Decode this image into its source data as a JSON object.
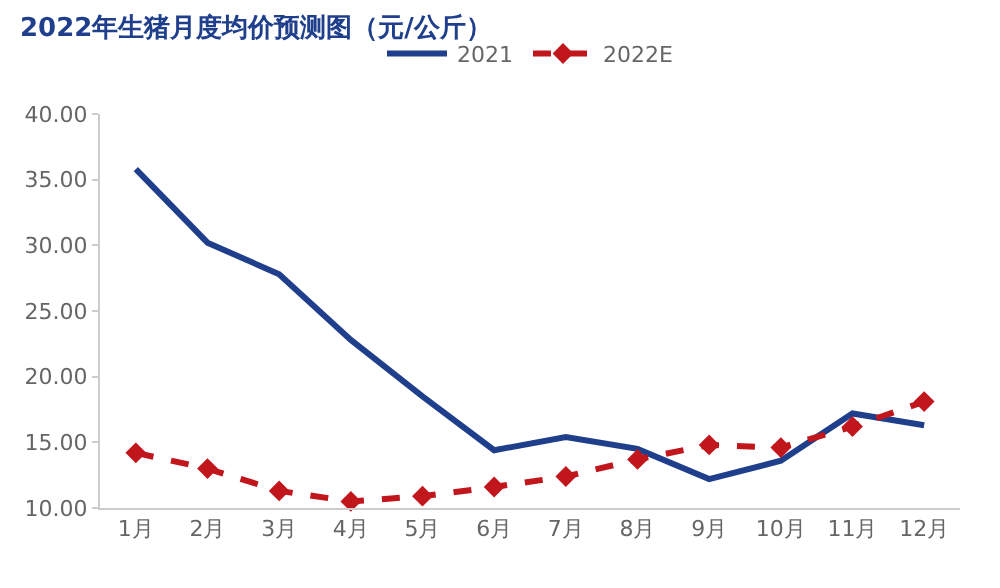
{
  "chart_data": {
    "type": "line",
    "title": "2022年生猪月度均价预测图（元/公斤）",
    "categories": [
      "1月",
      "2月",
      "3月",
      "4月",
      "5月",
      "6月",
      "7月",
      "8月",
      "9月",
      "10月",
      "11月",
      "12月"
    ],
    "series": [
      {
        "name": "2021",
        "color": "#1f3f8c",
        "values": [
          35.8,
          30.2,
          27.8,
          22.8,
          18.5,
          14.4,
          15.4,
          14.5,
          12.2,
          13.6,
          17.2,
          16.3
        ]
      },
      {
        "name": "2022E",
        "color": "#c0161c",
        "values": [
          14.2,
          13.0,
          11.3,
          10.5,
          10.9,
          11.6,
          12.4,
          13.7,
          14.8,
          14.6,
          16.2,
          18.1
        ],
        "marker": "diamond",
        "line_style": "dashed"
      }
    ],
    "ylim": [
      10,
      40
    ],
    "yticks": [
      {
        "value": 10,
        "label": "10.00"
      },
      {
        "value": 15,
        "label": "15.00"
      },
      {
        "value": 20,
        "label": "20.00"
      },
      {
        "value": 25,
        "label": "25.00"
      },
      {
        "value": 30,
        "label": "30.00"
      },
      {
        "value": 35,
        "label": "35.00"
      },
      {
        "value": 40,
        "label": "40.00"
      }
    ],
    "grid": false,
    "legend": "top"
  }
}
